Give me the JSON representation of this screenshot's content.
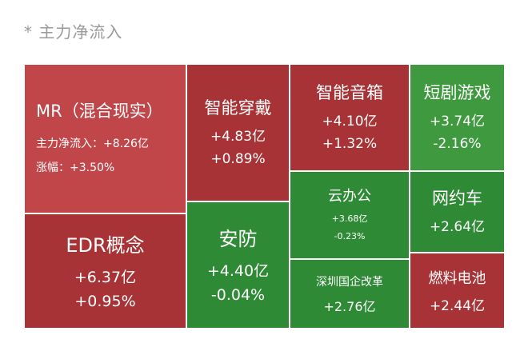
{
  "caption": "* 主力净流入",
  "chart_data": {
    "type": "treemap",
    "metric": "主力净流入",
    "colors": {
      "gain": "#c0464a",
      "gain_dark": "#a83336",
      "loss": "#2f8a36",
      "loss_light": "#3f9a3f"
    },
    "tiles": [
      {
        "name": "MR（混合现实）",
        "inflow_label": "主力净流入：",
        "inflow": "+8.26亿",
        "change_label": "涨幅：",
        "change": "+3.50%",
        "inflow_value": 8.26,
        "change_value": 3.5
      },
      {
        "name": "EDR概念",
        "inflow": "+6.37亿",
        "change": "+0.95%",
        "inflow_value": 6.37,
        "change_value": 0.95
      },
      {
        "name": "智能穿戴",
        "inflow": "+4.83亿",
        "change": "+0.89%",
        "inflow_value": 4.83,
        "change_value": 0.89
      },
      {
        "name": "安防",
        "inflow": "+4.40亿",
        "change": "-0.04%",
        "inflow_value": 4.4,
        "change_value": -0.04
      },
      {
        "name": "智能音箱",
        "inflow": "+4.10亿",
        "change": "+1.32%",
        "inflow_value": 4.1,
        "change_value": 1.32
      },
      {
        "name": "云办公",
        "inflow": "+3.68亿",
        "change": "-0.23%",
        "inflow_value": 3.68,
        "change_value": -0.23
      },
      {
        "name": "深圳国企改革",
        "inflow": "+2.76亿",
        "inflow_value": 2.76
      },
      {
        "name": "短剧游戏",
        "inflow": "+3.74亿",
        "change": "-2.16%",
        "inflow_value": 3.74,
        "change_value": -2.16
      },
      {
        "name": "网约车",
        "inflow": "+2.64亿",
        "inflow_value": 2.64
      },
      {
        "name": "燃料电池",
        "inflow": "+2.44亿",
        "inflow_value": 2.44
      }
    ]
  }
}
